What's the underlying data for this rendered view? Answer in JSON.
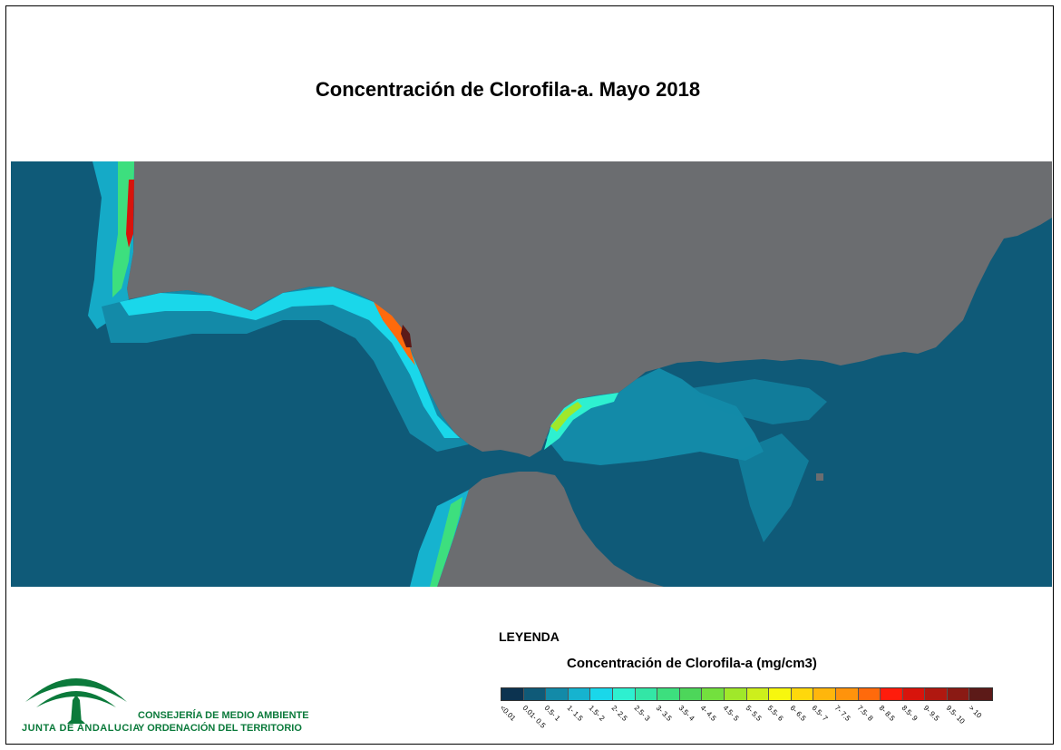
{
  "title": "Concentración de Clorofila-a. Mayo 2018",
  "legend": {
    "heading": "LEYENDA",
    "subtitle": "Concentración de Clorofila-a (mg/cm3)",
    "classes": [
      {
        "label": "<0.01",
        "color": "#0c3350"
      },
      {
        "label": "0.01- 0.5",
        "color": "#0f5a78"
      },
      {
        "label": "0.5- 1",
        "color": "#138aa8"
      },
      {
        "label": "1- 1.5",
        "color": "#16b3cf"
      },
      {
        "label": "1.5- 2",
        "color": "#1ad7ea"
      },
      {
        "label": "2- 2.5",
        "color": "#2ef0d0"
      },
      {
        "label": "2.5- 3",
        "color": "#33e6a6"
      },
      {
        "label": "3- 3.5",
        "color": "#3ddf7e"
      },
      {
        "label": "3.5- 4",
        "color": "#4dd65a"
      },
      {
        "label": "4- 4.5",
        "color": "#73e03e"
      },
      {
        "label": "4.5- 5",
        "color": "#a0e82a"
      },
      {
        "label": "5- 5.5",
        "color": "#cdef1c"
      },
      {
        "label": "5.5- 6",
        "color": "#f7f70e"
      },
      {
        "label": "6- 6.5",
        "color": "#ffd80c"
      },
      {
        "label": "6.5- 7",
        "color": "#ffb60c"
      },
      {
        "label": "7- 7.5",
        "color": "#ff930c"
      },
      {
        "label": "7.5- 8",
        "color": "#ff6a0c"
      },
      {
        "label": "8- 8.5",
        "color": "#ff1c0c"
      },
      {
        "label": "8.5- 9",
        "color": "#d8140c"
      },
      {
        "label": "9- 9.5",
        "color": "#b01810"
      },
      {
        "label": "9.5- 10",
        "color": "#8a1a14"
      },
      {
        "label": "> 10",
        "color": "#5c1a18"
      }
    ]
  },
  "logo": {
    "brand": "JUNTA DE ANDALUCIA",
    "org_line1": "CONSEJERÍA DE MEDIO AMBIENTE",
    "org_line2": "Y ORDENACIÓN DEL TERRITORIO"
  },
  "colors": {
    "land": "#6b6d70",
    "ocean": "#0f5a78",
    "brand_green": "#0b7a3b"
  }
}
